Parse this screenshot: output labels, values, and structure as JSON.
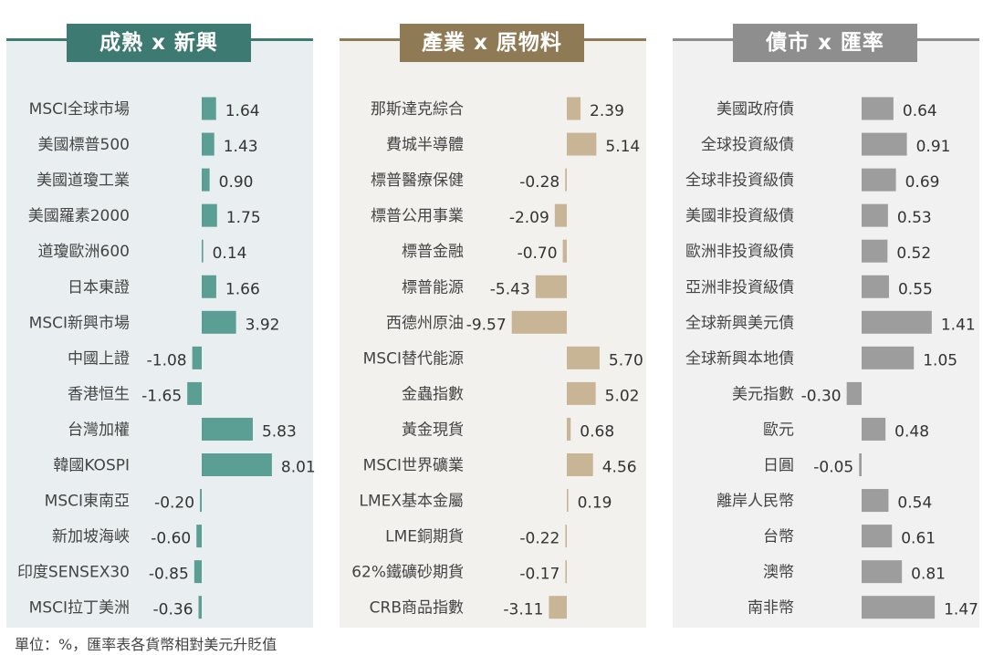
{
  "panels": [
    {
      "title": "成熟 x 新興",
      "bar_color": "#5b9f94",
      "header_color": "#3d7a71",
      "bg_color": "#e9eff0",
      "chart_data": {
        "type": "bar",
        "orientation": "horizontal",
        "categories": [
          "MSCI全球市場",
          "美國標普500",
          "美國道瓊工業",
          "美國羅素2000",
          "道瓊歐洲600",
          "日本東證",
          "MSCI新興市場",
          "中國上證",
          "香港恒生",
          "台灣加權",
          "韓國KOSPI",
          "MSCI東南亞",
          "新加坡海峽",
          "印度SENSEX30",
          "MSCI拉丁美洲"
        ],
        "values": [
          1.64,
          1.43,
          0.9,
          1.75,
          0.14,
          1.66,
          3.92,
          -1.08,
          -1.65,
          5.83,
          8.01,
          -0.2,
          -0.6,
          -0.85,
          -0.36
        ],
        "value_labels": [
          "1.64",
          "1.43",
          "0.90",
          "1.75",
          "0.14",
          "1.66",
          "3.92",
          "-1.08",
          "-1.65",
          "5.83",
          "8.01",
          "-0.20",
          "-0.60",
          "-0.85",
          "-0.36"
        ]
      }
    },
    {
      "title": "產業 x 原物料",
      "bar_color": "#c8b596",
      "header_color": "#8f7a56",
      "bg_color": "#f3f1ee",
      "chart_data": {
        "type": "bar",
        "orientation": "horizontal",
        "categories": [
          "那斯達克綜合",
          "費城半導體",
          "標普醫療保健",
          "標普公用事業",
          "標普金融",
          "標普能源",
          "西德州原油",
          "MSCI替代能源",
          "金蟲指數",
          "黃金現貨",
          "MSCI世界礦業",
          "LMEX基本金屬",
          "LME銅期貨",
          "62%鐵礦砂期貨",
          "CRB商品指數"
        ],
        "values": [
          2.39,
          5.14,
          -0.28,
          -2.09,
          -0.7,
          -5.43,
          -9.57,
          5.7,
          5.02,
          0.68,
          4.56,
          0.19,
          -0.22,
          -0.17,
          -3.11
        ],
        "value_labels": [
          "2.39",
          "5.14",
          "-0.28",
          "-2.09",
          "-0.70",
          "-5.43",
          "-9.57",
          "5.70",
          "5.02",
          "0.68",
          "4.56",
          "0.19",
          "-0.22",
          "-0.17",
          "-3.11"
        ]
      }
    },
    {
      "title": "債市 x 匯率",
      "bar_color": "#9d9d9d",
      "header_color": "#8e8e8e",
      "bg_color": "#f1f1f1",
      "chart_data": {
        "type": "bar",
        "orientation": "horizontal",
        "categories": [
          "美國政府債",
          "全球投資級債",
          "全球非投資級債",
          "美國非投資級債",
          "歐洲非投資級債",
          "亞洲非投資級債",
          "全球新興美元債",
          "全球新興本地債",
          "美元指數",
          "歐元",
          "日圓",
          "離岸人民幣",
          "台幣",
          "澳幣",
          "南非幣"
        ],
        "values": [
          0.64,
          0.91,
          0.69,
          0.53,
          0.52,
          0.55,
          1.41,
          1.05,
          -0.3,
          0.48,
          -0.05,
          0.54,
          0.61,
          0.81,
          1.47
        ],
        "value_labels": [
          "0.64",
          "0.91",
          "0.69",
          "0.53",
          "0.52",
          "0.55",
          "1.41",
          "1.05",
          "-0.30",
          "0.48",
          "-0.05",
          "0.54",
          "0.61",
          "0.81",
          "1.47"
        ]
      }
    }
  ],
  "footnote": "單位：%，匯率表各貨幣相對美元升貶值"
}
